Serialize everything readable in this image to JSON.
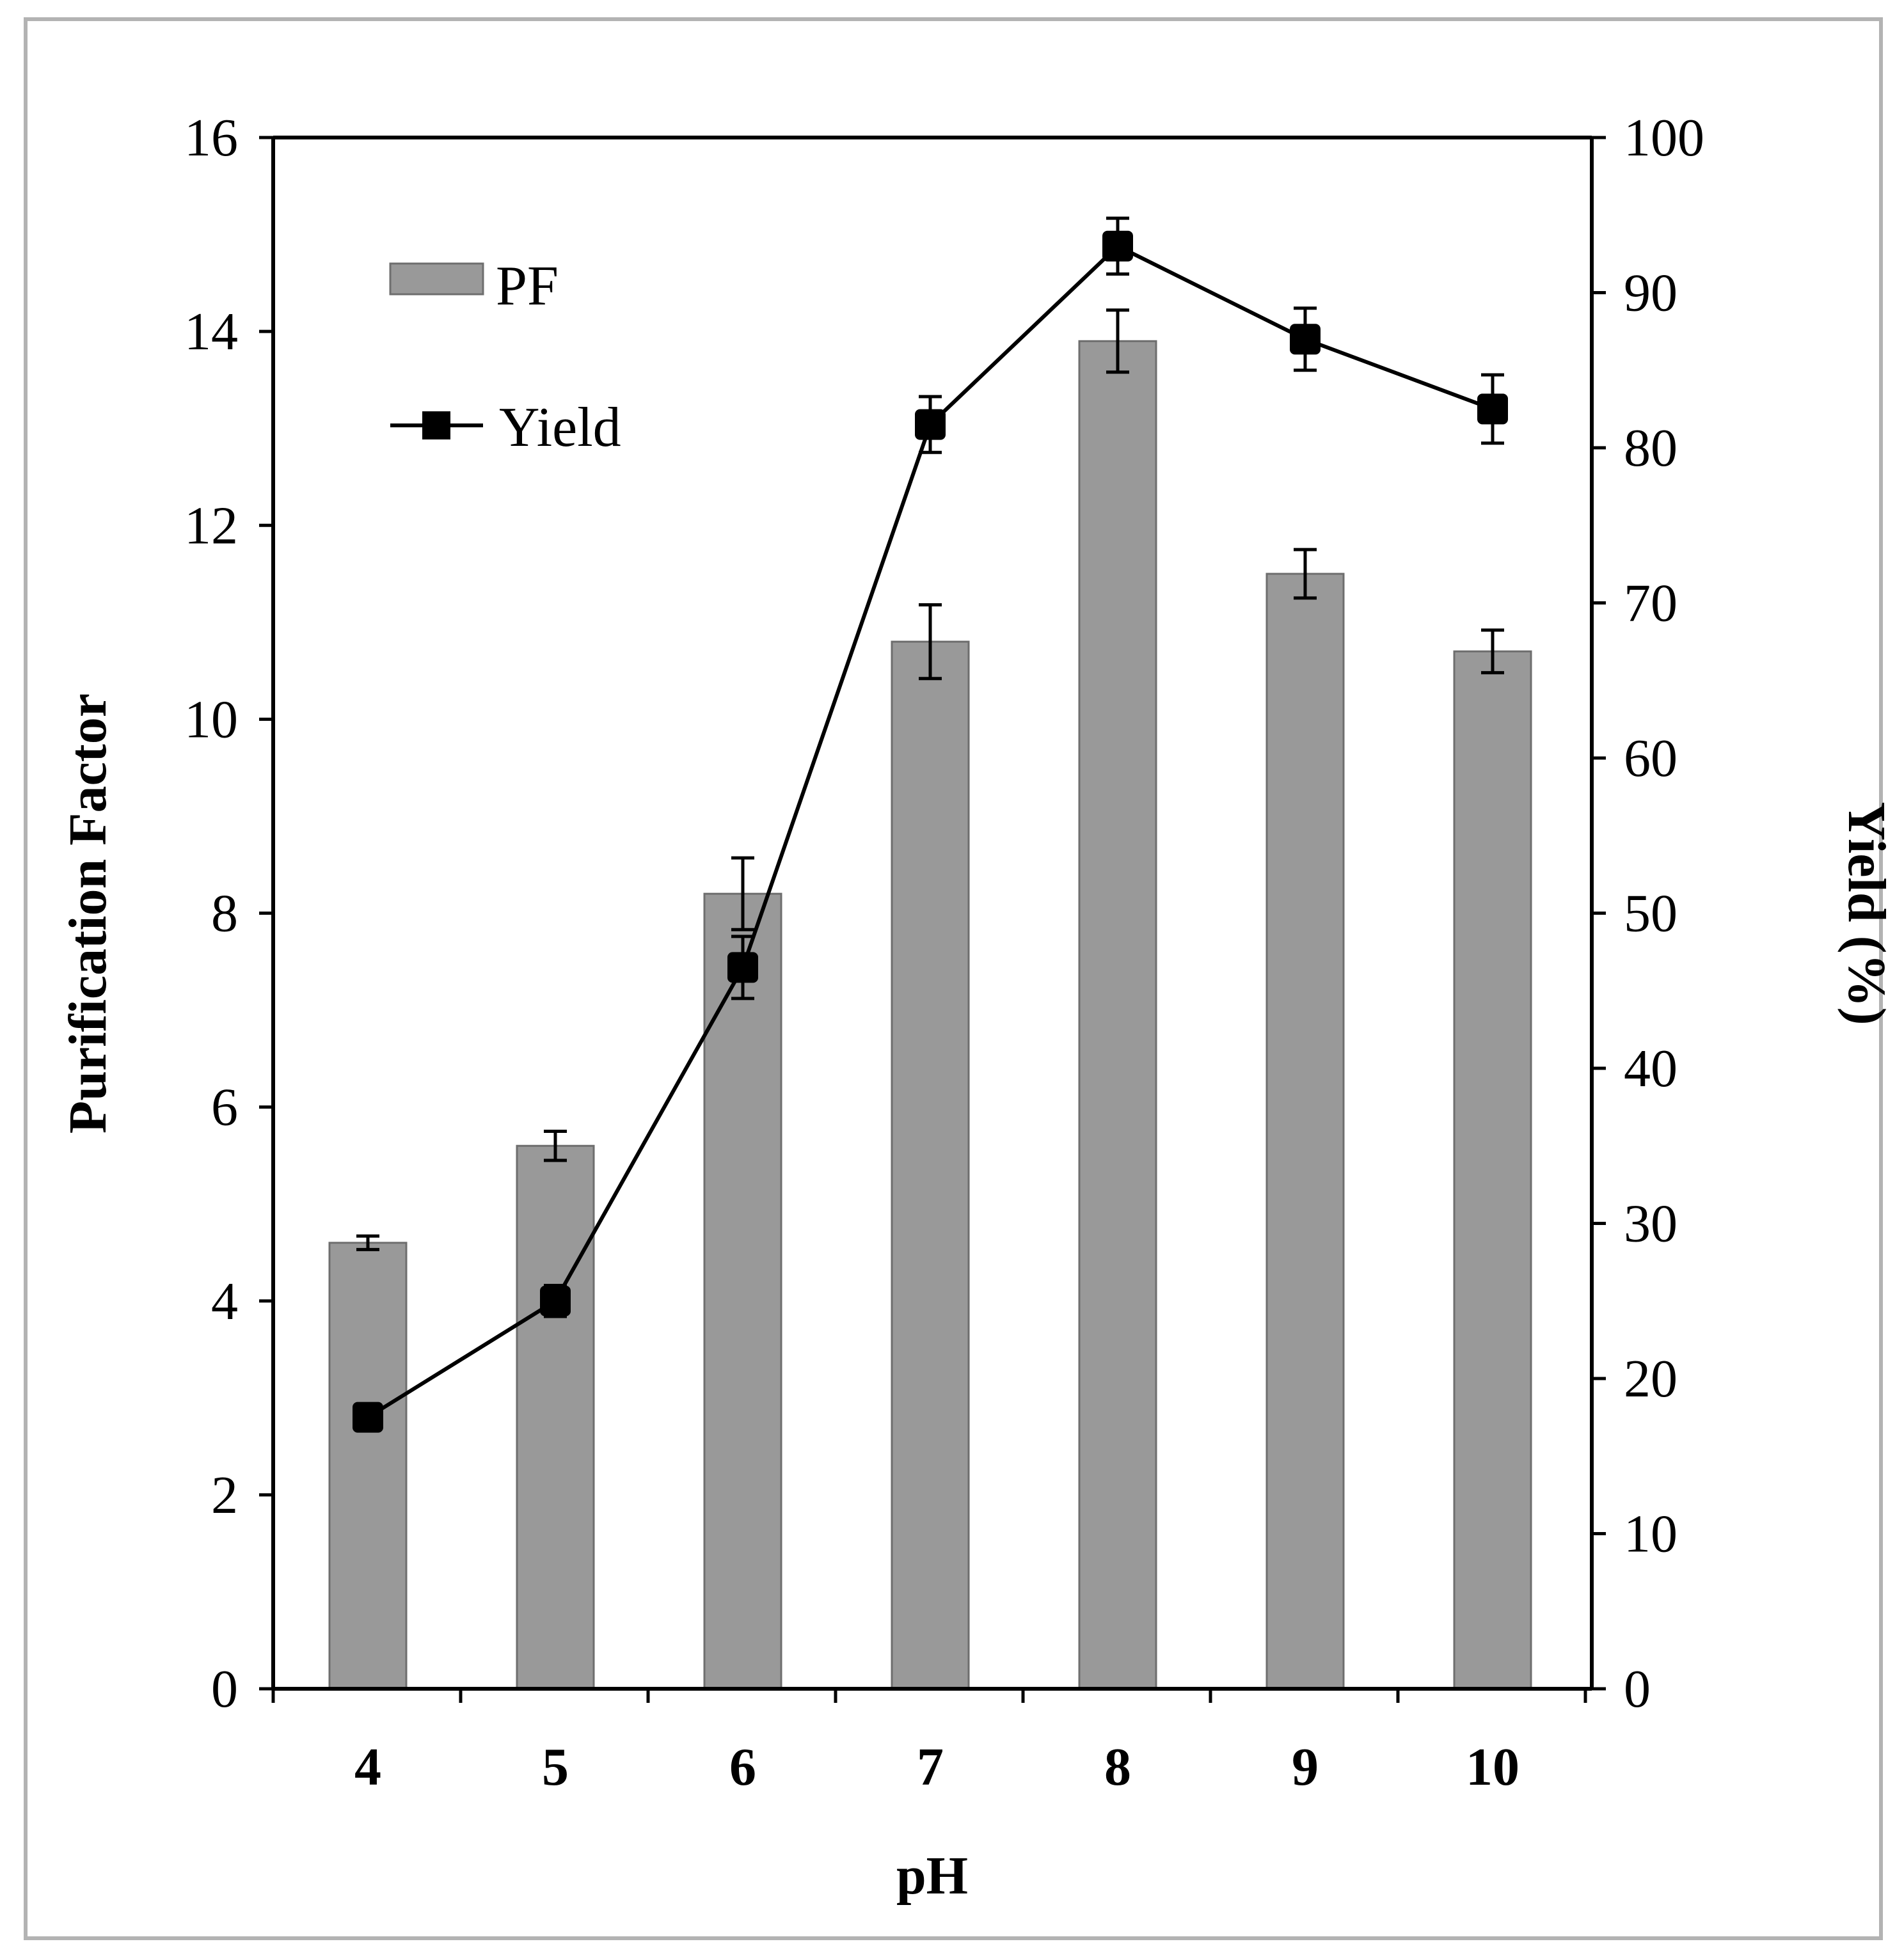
{
  "chart_data": {
    "type": "bar+line",
    "title": "",
    "xlabel": "pH",
    "ylabel": "Purification Factor",
    "y2label": "Yield (%)",
    "categories": [
      "4",
      "5",
      "6",
      "7",
      "8",
      "9",
      "10"
    ],
    "ylim": [
      0,
      16
    ],
    "yticks": [
      "0",
      "2",
      "4",
      "6",
      "8",
      "10",
      "12",
      "14",
      "16"
    ],
    "y2lim": [
      0,
      100
    ],
    "y2ticks": [
      "0",
      "10",
      "20",
      "30",
      "40",
      "50",
      "60",
      "70",
      "80",
      "90",
      "100"
    ],
    "legend_position": "top-left",
    "colors": {
      "bar": "#999999",
      "line": "#000000"
    },
    "series": [
      {
        "name": "PF",
        "type": "bar",
        "axis": "left",
        "values": [
          4.6,
          5.6,
          8.2,
          10.8,
          13.9,
          11.5,
          10.7
        ],
        "errors": [
          0.07,
          0.15,
          0.37,
          0.38,
          0.32,
          0.25,
          0.22
        ]
      },
      {
        "name": "Yield",
        "type": "line",
        "axis": "right",
        "values": [
          17.5,
          25.0,
          46.5,
          81.5,
          93.0,
          87.0,
          82.5
        ],
        "errors": [
          0.7,
          1.0,
          2.0,
          1.8,
          1.8,
          2.0,
          2.2
        ]
      }
    ]
  }
}
